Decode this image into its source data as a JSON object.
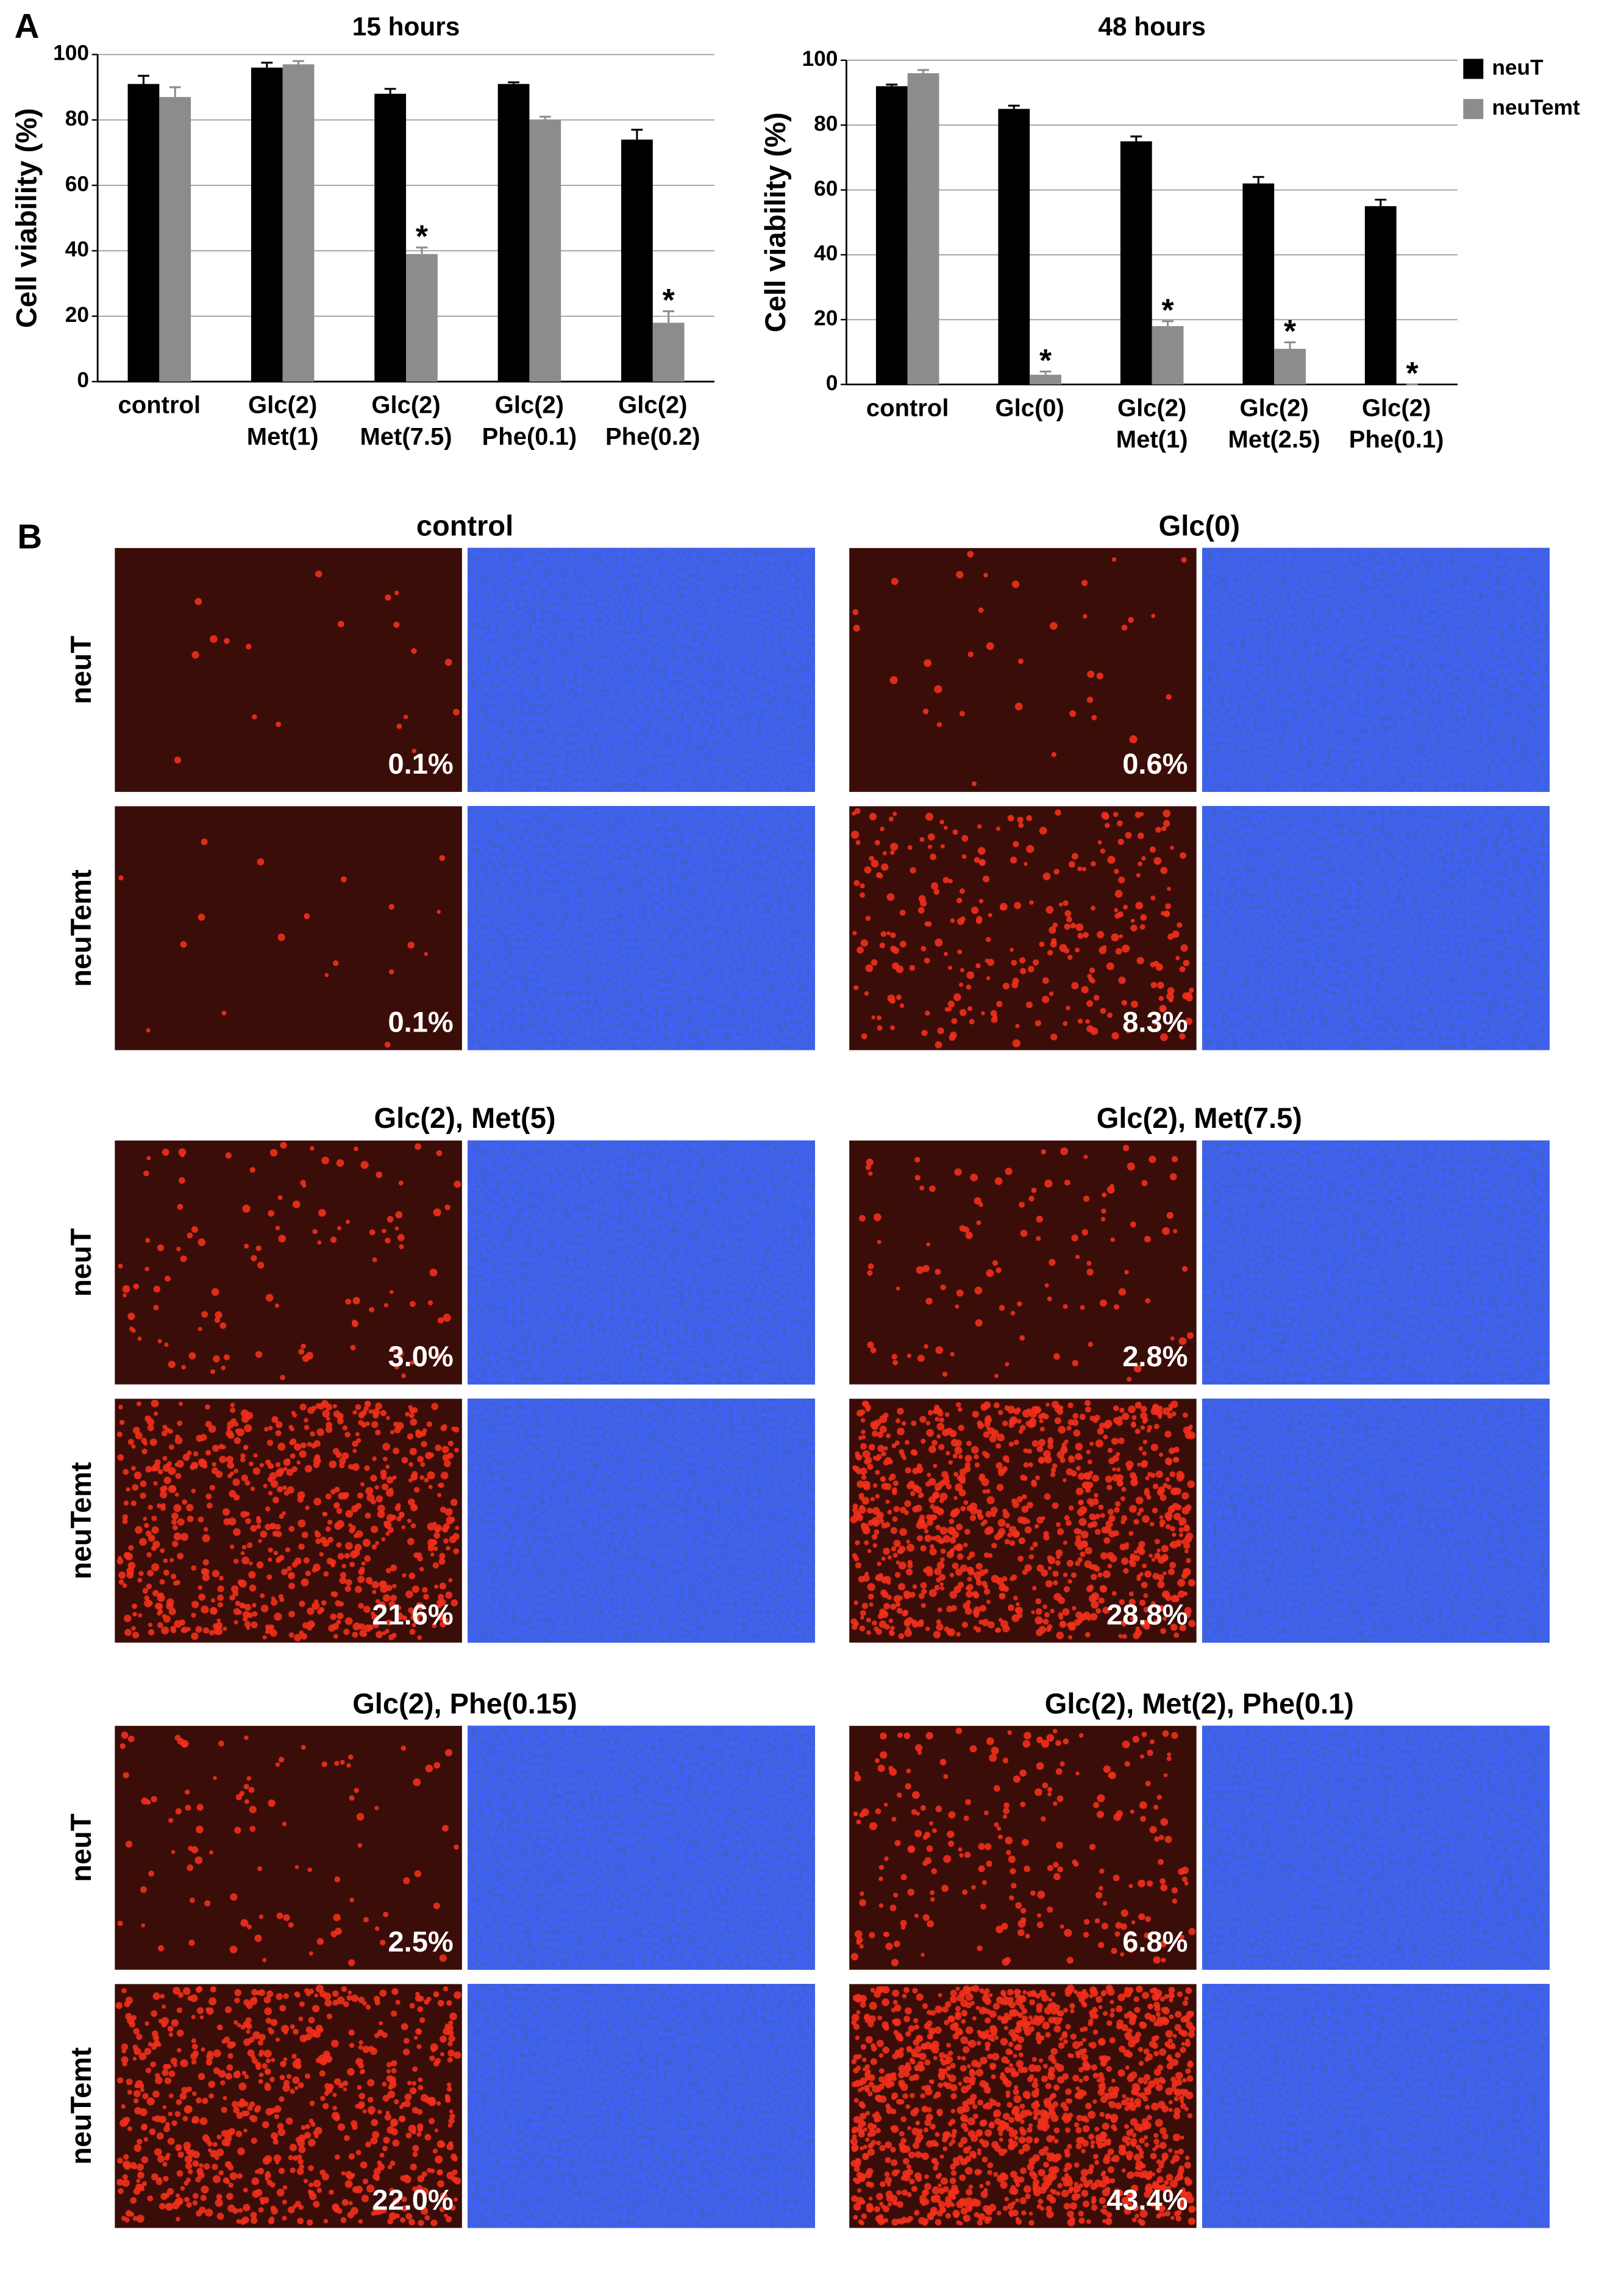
{
  "panel_labels": {
    "a": "A",
    "b": "B"
  },
  "chart_data": [
    {
      "type": "bar",
      "title": "15 hours",
      "y_label": "Cell viability (%)",
      "categories": [
        "control",
        "Glc(2)\nMet(1)",
        "Glc(2)\nMet(7.5)",
        "Glc(2)\nPhe(0.1)",
        "Glc(2)\nPhe(0.2)"
      ],
      "series": [
        {
          "name": "neuT",
          "color": "#000000",
          "values": [
            91,
            96,
            88,
            91,
            74
          ],
          "errors": [
            2.5,
            1.5,
            1.5,
            0.5,
            3
          ]
        },
        {
          "name": "neuTemt",
          "color": "#8c8c8c",
          "values": [
            87,
            97,
            39,
            80,
            18
          ],
          "errors": [
            3,
            1,
            2,
            1,
            3.5
          ]
        }
      ],
      "annotations": [
        {
          "text": "*",
          "category": "Glc(2)\nMet(7.5)",
          "series": "neuTemt"
        },
        {
          "text": "*",
          "category": "Glc(2)\nPhe(0.2)",
          "series": "neuTemt"
        }
      ],
      "ylim": [
        0,
        100
      ],
      "yticks": [
        0,
        20,
        40,
        60,
        80,
        100
      ],
      "grid": true
    },
    {
      "type": "bar",
      "title": "48 hours",
      "y_label": "Cell viability (%)",
      "categories": [
        "control",
        "Glc(0)",
        "Glc(2)\nMet(1)",
        "Glc(2)\nMet(2.5)",
        "Glc(2)\nPhe(0.1)"
      ],
      "series": [
        {
          "name": "neuT",
          "color": "#000000",
          "values": [
            92,
            85,
            75,
            62,
            55
          ],
          "errors": [
            0.5,
            1,
            1.5,
            2,
            2
          ]
        },
        {
          "name": "neuTemt",
          "color": "#8c8c8c",
          "values": [
            96,
            3,
            18,
            11,
            0
          ],
          "errors": [
            1,
            1,
            1.5,
            2,
            0
          ]
        }
      ],
      "annotations": [
        {
          "text": "*",
          "category": "Glc(0)",
          "series": "neuTemt"
        },
        {
          "text": "*",
          "category": "Glc(2)\nMet(1)",
          "series": "neuTemt"
        },
        {
          "text": "*",
          "category": "Glc(2)\nMet(2.5)",
          "series": "neuTemt"
        },
        {
          "text": "*",
          "category": "Glc(2)\nPhe(0.1)",
          "series": "neuTemt"
        }
      ],
      "ylim": [
        0,
        100
      ],
      "yticks": [
        0,
        20,
        40,
        60,
        80,
        100
      ],
      "grid": true,
      "legend": "right"
    }
  ],
  "panel_b": {
    "groups": [
      {
        "title": "control",
        "rows": [
          {
            "label": "neuT",
            "percent": "0.1%"
          },
          {
            "label": "neuTemt",
            "percent": "0.1%"
          }
        ]
      },
      {
        "title": "Glc(0)",
        "rows": [
          {
            "label": "neuT",
            "percent": "0.6%"
          },
          {
            "label": "neuTemt",
            "percent": "8.3%"
          }
        ]
      },
      {
        "title": "Glc(2), Met(5)",
        "rows": [
          {
            "label": "neuT",
            "percent": "3.0%"
          },
          {
            "label": "neuTemt",
            "percent": "21.6%"
          }
        ]
      },
      {
        "title": "Glc(2), Met(7.5)",
        "rows": [
          {
            "label": "neuT",
            "percent": "2.8%"
          },
          {
            "label": "neuTemt",
            "percent": "28.8%"
          }
        ]
      },
      {
        "title": "Glc(2), Phe(0.15)",
        "rows": [
          {
            "label": "neuT",
            "percent": "2.5%"
          },
          {
            "label": "neuTemt",
            "percent": "22.0%"
          }
        ]
      },
      {
        "title": "Glc(2), Met(2), Phe(0.1)",
        "rows": [
          {
            "label": "neuT",
            "percent": "6.8%"
          },
          {
            "label": "neuTemt",
            "percent": "43.4%"
          }
        ]
      }
    ]
  }
}
